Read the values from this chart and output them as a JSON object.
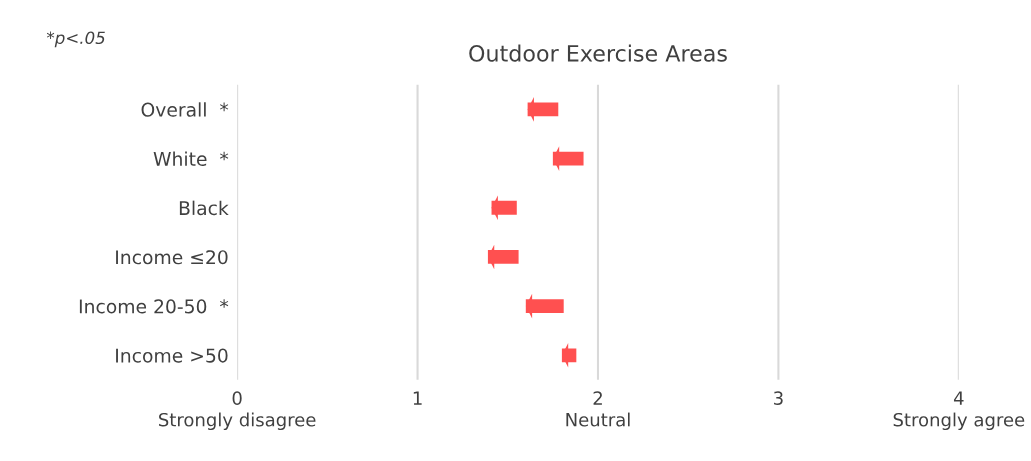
{
  "chart_data": {
    "type": "bar",
    "orientation": "horizontal",
    "title": "Outdoor Exercise Areas",
    "categories": [
      "Overall  *",
      "White  *",
      "Black",
      "Income ≤20",
      "Income 20-50  *",
      "Income >50"
    ],
    "base": [
      1.78,
      1.92,
      1.55,
      1.56,
      1.81,
      1.88
    ],
    "values": [
      -0.17,
      -0.17,
      -0.14,
      -0.17,
      -0.21,
      -0.08
    ],
    "color": "#ff5050",
    "xlim": [
      0,
      4
    ],
    "xticks": [
      {
        "value": 0,
        "label": "0\nStrongly disagree"
      },
      1,
      {
        "value": 2,
        "label": "2\nNeutral"
      },
      3,
      {
        "value": 4,
        "label": "4\nStrongly agree"
      }
    ],
    "grid": "x",
    "annotations": [
      "*p<.05"
    ]
  }
}
